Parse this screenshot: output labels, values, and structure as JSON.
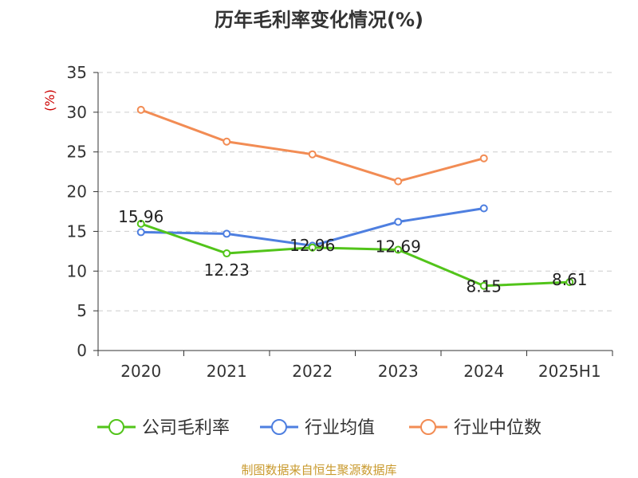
{
  "chart_data": {
    "type": "line",
    "title": "历年毛利率变化情况(%)",
    "ylabel": "(%)",
    "xlabel": "",
    "categories": [
      "2020",
      "2021",
      "2022",
      "2023",
      "2024",
      "2025H1"
    ],
    "ylim": [
      0,
      35
    ],
    "yticks": [
      0,
      5,
      10,
      15,
      20,
      25,
      30,
      35
    ],
    "grid": true,
    "legend_position": "bottom",
    "series": [
      {
        "name": "公司毛利率",
        "color": "#52c41a",
        "values": [
          15.96,
          12.23,
          12.96,
          12.69,
          8.15,
          8.61
        ],
        "labels": [
          "15.96",
          "12.23",
          "12.96",
          "12.69",
          "8.15",
          "8.61"
        ]
      },
      {
        "name": "行业均值",
        "color": "#4e7fe0",
        "values": [
          14.9,
          14.7,
          13.2,
          16.2,
          17.9,
          null
        ]
      },
      {
        "name": "行业中位数",
        "color": "#f28c54",
        "values": [
          30.3,
          26.3,
          24.7,
          21.3,
          24.2,
          null
        ]
      }
    ]
  },
  "source": "制图数据来自恒生聚源数据库",
  "colors": {
    "unit_label": "#cc0000",
    "source_text": "#c99a2e",
    "grid": "#cccccc",
    "axis": "#333333"
  }
}
